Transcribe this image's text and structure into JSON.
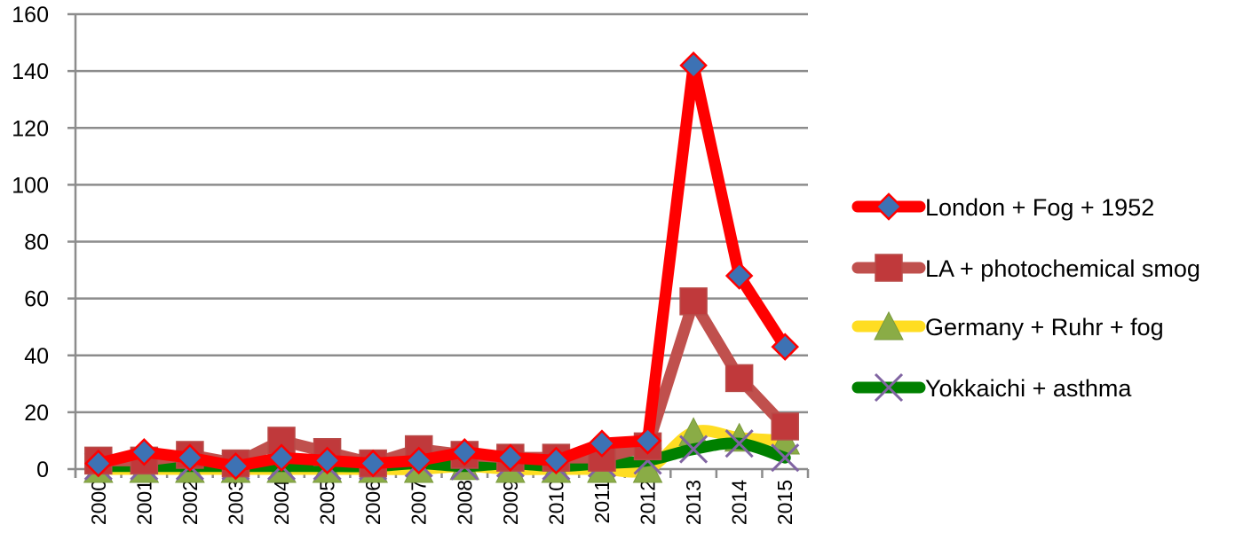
{
  "chart_data": {
    "type": "line",
    "title": "",
    "xlabel": "",
    "ylabel": "",
    "ylim": [
      0,
      160
    ],
    "yticks": [
      "0",
      "20",
      "40",
      "60",
      "80",
      "100",
      "120",
      "140",
      "160"
    ],
    "grid": true,
    "legend_position": "right",
    "categories": [
      "2000",
      "2001",
      "2002",
      "2003",
      "2004",
      "2005",
      "2006",
      "2007",
      "2008",
      "2009",
      "2010",
      "2011",
      "2012",
      "2013",
      "2014",
      "2015"
    ],
    "series": [
      {
        "name": "London + Fog + 1952",
        "line_color": "#ff0000",
        "marker": "diamond",
        "marker_color": "#3d72b4",
        "smooth": false,
        "values": [
          2,
          6,
          4,
          1,
          4,
          3,
          2,
          3,
          6,
          4,
          3,
          9,
          10,
          142,
          68,
          43
        ]
      },
      {
        "name": "LA + photochemical smog",
        "line_color": "#c0504d",
        "marker": "square",
        "marker_color": "#c0393b",
        "smooth": false,
        "values": [
          3,
          3,
          5,
          2,
          10,
          6,
          2,
          7,
          5,
          4,
          4,
          4,
          8,
          59,
          32,
          15
        ]
      },
      {
        "name": "Germany + Ruhr + fog",
        "line_color": "#ffdd22",
        "marker": "triangle",
        "marker_color": "#8aac46",
        "smooth": true,
        "values": [
          0,
          0,
          0,
          0,
          0,
          0,
          0,
          0,
          1,
          0,
          0,
          0,
          0,
          13,
          11,
          10
        ]
      },
      {
        "name": "Yokkaichi + asthma",
        "line_color": "#008000",
        "marker": "x",
        "marker_color": "#8064a2",
        "smooth": true,
        "values": [
          1,
          1,
          1,
          1,
          1,
          1,
          1,
          2,
          1,
          2,
          1,
          2,
          3,
          7,
          9,
          4
        ]
      }
    ]
  }
}
